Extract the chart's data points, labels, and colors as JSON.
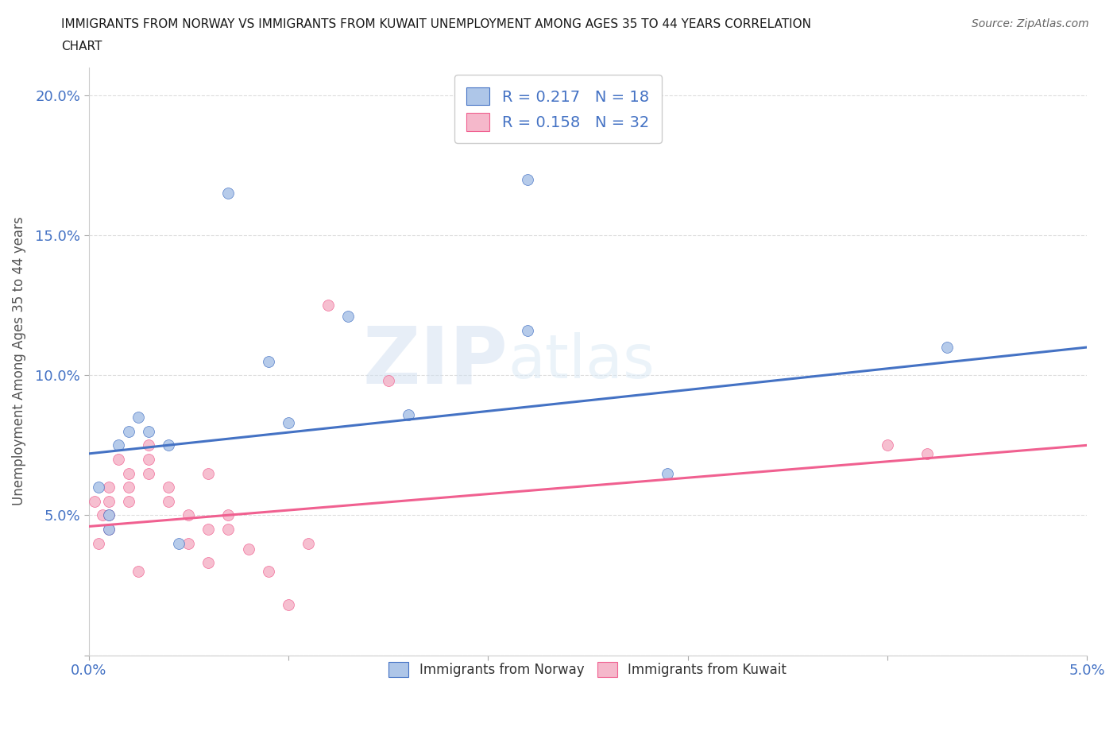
{
  "title_line1": "IMMIGRANTS FROM NORWAY VS IMMIGRANTS FROM KUWAIT UNEMPLOYMENT AMONG AGES 35 TO 44 YEARS CORRELATION",
  "title_line2": "CHART",
  "source": "Source: ZipAtlas.com",
  "ylabel": "Unemployment Among Ages 35 to 44 years",
  "xlim": [
    0.0,
    0.05
  ],
  "ylim": [
    0.0,
    0.21
  ],
  "xticks": [
    0.0,
    0.01,
    0.02,
    0.03,
    0.04,
    0.05
  ],
  "xticklabels": [
    "0.0%",
    "",
    "",
    "",
    "",
    "5.0%"
  ],
  "yticks": [
    0.0,
    0.05,
    0.1,
    0.15,
    0.2
  ],
  "yticklabels": [
    "",
    "5.0%",
    "10.0%",
    "15.0%",
    "20.0%"
  ],
  "norway_color": "#aec6e8",
  "kuwait_color": "#f5b8cb",
  "norway_line_color": "#4472c4",
  "kuwait_line_color": "#f06090",
  "norway_R": 0.217,
  "norway_N": 18,
  "kuwait_R": 0.158,
  "kuwait_N": 32,
  "legend_label_norway": "Immigrants from Norway",
  "legend_label_kuwait": "Immigrants from Kuwait",
  "norway_x": [
    0.0005,
    0.001,
    0.001,
    0.0015,
    0.002,
    0.0025,
    0.003,
    0.004,
    0.0045,
    0.007,
    0.009,
    0.01,
    0.013,
    0.016,
    0.022,
    0.022,
    0.029,
    0.043
  ],
  "norway_y": [
    0.06,
    0.045,
    0.05,
    0.075,
    0.08,
    0.085,
    0.08,
    0.075,
    0.04,
    0.165,
    0.105,
    0.083,
    0.121,
    0.086,
    0.17,
    0.116,
    0.065,
    0.11
  ],
  "kuwait_x": [
    0.0003,
    0.0005,
    0.0007,
    0.001,
    0.001,
    0.001,
    0.001,
    0.0015,
    0.002,
    0.002,
    0.002,
    0.0025,
    0.003,
    0.003,
    0.003,
    0.004,
    0.004,
    0.005,
    0.005,
    0.006,
    0.006,
    0.006,
    0.007,
    0.007,
    0.008,
    0.009,
    0.01,
    0.011,
    0.012,
    0.015,
    0.04,
    0.042
  ],
  "kuwait_y": [
    0.055,
    0.04,
    0.05,
    0.06,
    0.055,
    0.05,
    0.045,
    0.07,
    0.065,
    0.06,
    0.055,
    0.03,
    0.075,
    0.07,
    0.065,
    0.06,
    0.055,
    0.05,
    0.04,
    0.045,
    0.033,
    0.065,
    0.05,
    0.045,
    0.038,
    0.03,
    0.018,
    0.04,
    0.125,
    0.098,
    0.075,
    0.072
  ],
  "norway_trendline_x": [
    0.0,
    0.05
  ],
  "norway_trendline_y": [
    0.072,
    0.11
  ],
  "kuwait_trendline_x": [
    0.0,
    0.05
  ],
  "kuwait_trendline_y": [
    0.046,
    0.075
  ],
  "watermark_zip": "ZIP",
  "watermark_atlas": "atlas",
  "background_color": "#ffffff",
  "grid_color": "#dddddd",
  "tick_color": "#4472c4",
  "axis_label_color": "#555555",
  "marker_size": 100
}
